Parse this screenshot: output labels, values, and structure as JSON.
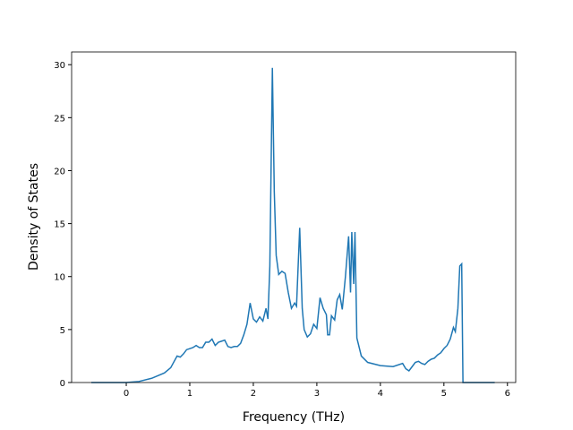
{
  "chart_data": {
    "type": "line",
    "x_label": "Frequency (THz)",
    "y_label": "Density of States",
    "series": [
      {
        "color": "#1f77b4",
        "x": [
          -0.55,
          0,
          0.2,
          0.4,
          0.6,
          0.7,
          0.8,
          0.85,
          0.9,
          0.95,
          1.0,
          1.05,
          1.1,
          1.15,
          1.2,
          1.25,
          1.3,
          1.35,
          1.4,
          1.45,
          1.5,
          1.55,
          1.6,
          1.65,
          1.7,
          1.75,
          1.8,
          1.85,
          1.9,
          1.95,
          2.0,
          2.05,
          2.1,
          2.15,
          2.2,
          2.23,
          2.26,
          2.3,
          2.33,
          2.36,
          2.4,
          2.45,
          2.5,
          2.55,
          2.6,
          2.65,
          2.68,
          2.73,
          2.77,
          2.8,
          2.85,
          2.9,
          2.95,
          3.0,
          3.05,
          3.1,
          3.15,
          3.17,
          3.2,
          3.23,
          3.28,
          3.32,
          3.36,
          3.4,
          3.45,
          3.5,
          3.53,
          3.55,
          3.58,
          3.6,
          3.63,
          3.7,
          3.8,
          4.0,
          4.2,
          4.35,
          4.4,
          4.45,
          4.5,
          4.55,
          4.6,
          4.65,
          4.7,
          4.75,
          4.8,
          4.85,
          4.9,
          4.95,
          5.0,
          5.05,
          5.1,
          5.15,
          5.18,
          5.22,
          5.25,
          5.28,
          5.3,
          5.8
        ],
        "values": [
          0,
          0,
          0.1,
          0.4,
          0.9,
          1.4,
          2.5,
          2.4,
          2.7,
          3.1,
          3.2,
          3.3,
          3.5,
          3.3,
          3.3,
          3.8,
          3.8,
          4.1,
          3.5,
          3.8,
          3.9,
          4.0,
          3.4,
          3.3,
          3.4,
          3.4,
          3.7,
          4.5,
          5.5,
          7.5,
          6.0,
          5.7,
          6.2,
          5.8,
          7.0,
          6.0,
          11,
          29.7,
          18,
          12,
          10.2,
          10.5,
          10.3,
          8.5,
          7.0,
          7.5,
          7.2,
          14.6,
          7,
          5,
          4.3,
          4.6,
          5.5,
          5.1,
          8.0,
          7.0,
          6.4,
          4.5,
          4.5,
          6.3,
          5.9,
          7.8,
          8.3,
          6.9,
          10.0,
          13.8,
          8.5,
          14.2,
          9.3,
          14.2,
          4.2,
          2.5,
          1.9,
          1.6,
          1.5,
          1.8,
          1.3,
          1.1,
          1.5,
          1.9,
          2.0,
          1.8,
          1.7,
          2.0,
          2.2,
          2.3,
          2.6,
          2.8,
          3.2,
          3.5,
          4.1,
          5.2,
          4.8,
          7,
          11,
          11.2,
          0,
          0
        ]
      }
    ],
    "xlim": [
      -0.86,
      6.13
    ],
    "ylim": [
      0,
      31.2
    ],
    "xticks": [
      0,
      1,
      2,
      3,
      4,
      5,
      6
    ],
    "yticks": [
      0,
      5,
      10,
      15,
      20,
      25,
      30
    ]
  }
}
